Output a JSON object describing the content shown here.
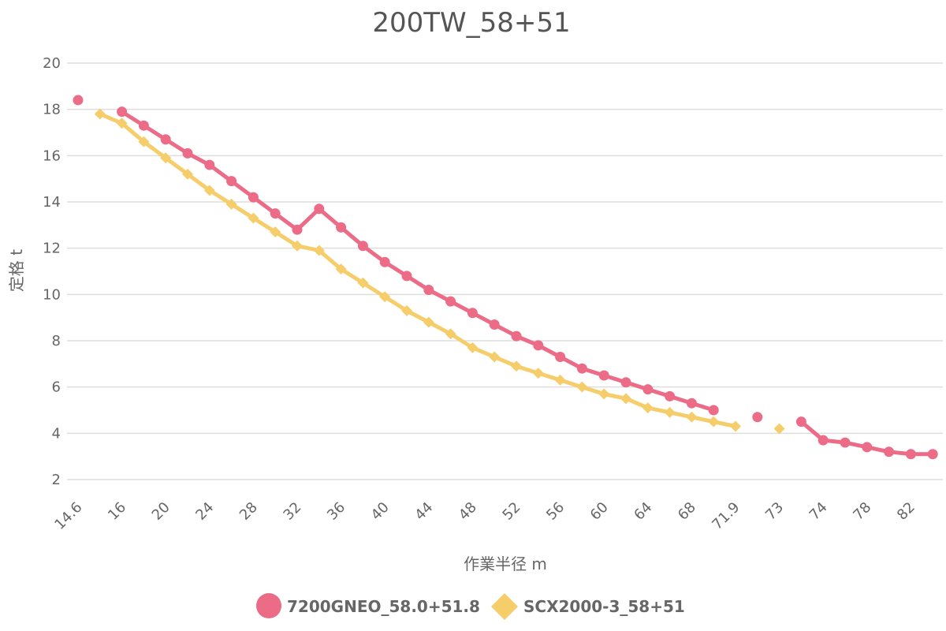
{
  "chart_data": {
    "type": "line",
    "title": "200TW_58+51",
    "xlabel": "作業半径 m",
    "ylabel": "定格 t",
    "ylim": [
      2,
      20
    ],
    "yticks": [
      "2",
      "4",
      "6",
      "8",
      "10",
      "12",
      "14",
      "16",
      "18",
      "20"
    ],
    "categories": [
      "14.6",
      "15",
      "16",
      "18",
      "20",
      "22",
      "24",
      "26",
      "28",
      "30",
      "32",
      "34",
      "36",
      "38",
      "40",
      "42",
      "44",
      "46",
      "48",
      "50",
      "52",
      "54",
      "56",
      "58",
      "60",
      "62",
      "64",
      "66",
      "68",
      "70",
      "71.9",
      "72",
      "73",
      "73.2",
      "74",
      "76",
      "78",
      "80",
      "82",
      "84"
    ],
    "xtick_labels": [
      "14.6",
      "16",
      "20",
      "24",
      "28",
      "32",
      "36",
      "40",
      "44",
      "48",
      "52",
      "56",
      "60",
      "64",
      "68",
      "71.9",
      "73",
      "74",
      "78",
      "82"
    ],
    "legend_position": "bottom",
    "grid": true,
    "series": [
      {
        "name": "7200GNEO_58.0+51.8",
        "color": "#ec6b87",
        "marker": "circle",
        "values": [
          18.4,
          null,
          17.9,
          17.3,
          16.7,
          16.1,
          15.6,
          14.9,
          14.2,
          13.5,
          12.8,
          13.7,
          12.9,
          12.1,
          11.4,
          10.8,
          10.2,
          9.7,
          9.2,
          8.7,
          8.2,
          7.8,
          7.3,
          6.8,
          6.5,
          6.2,
          5.9,
          5.6,
          5.3,
          5.0,
          null,
          4.7,
          null,
          4.5,
          3.7,
          3.6,
          3.4,
          3.2,
          3.1,
          3.1
        ]
      },
      {
        "name": "SCX2000-3_58+51",
        "color": "#f5cd6a",
        "marker": "diamond",
        "values": [
          null,
          17.8,
          17.4,
          16.6,
          15.9,
          15.2,
          14.5,
          13.9,
          13.3,
          12.7,
          12.1,
          11.9,
          11.1,
          10.5,
          9.9,
          9.3,
          8.8,
          8.3,
          7.7,
          7.3,
          6.9,
          6.6,
          6.3,
          6.0,
          5.7,
          5.5,
          5.1,
          4.9,
          4.7,
          4.5,
          4.3,
          null,
          4.2,
          null,
          null,
          null,
          null,
          null,
          null,
          null
        ]
      }
    ]
  }
}
